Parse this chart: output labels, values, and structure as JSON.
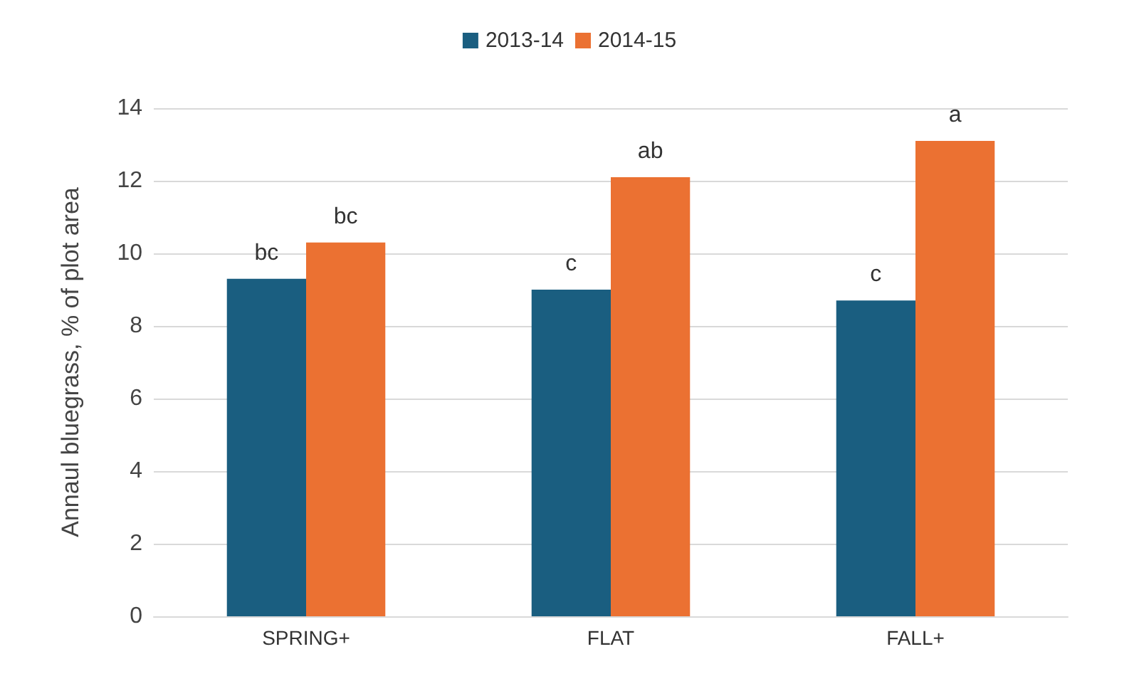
{
  "chart_data": {
    "type": "bar",
    "ylabel": "Annaul bluegrass, % of plot area",
    "categories": [
      "SPRING+",
      "FLAT",
      "FALL+"
    ],
    "series": [
      {
        "name": "2013-14",
        "color": "#1a5e80",
        "values": [
          9.3,
          9.0,
          8.7
        ],
        "value_labels": [
          "bc",
          "c",
          "c"
        ]
      },
      {
        "name": "2014-15",
        "color": "#eb7132",
        "values": [
          10.3,
          12.1,
          13.1
        ],
        "value_labels": [
          "bc",
          "ab",
          "a"
        ]
      }
    ],
    "ylim": [
      0,
      14
    ],
    "yticks": [
      0,
      2,
      4,
      6,
      8,
      10,
      12,
      14
    ],
    "grid": "y",
    "legend": "top"
  }
}
